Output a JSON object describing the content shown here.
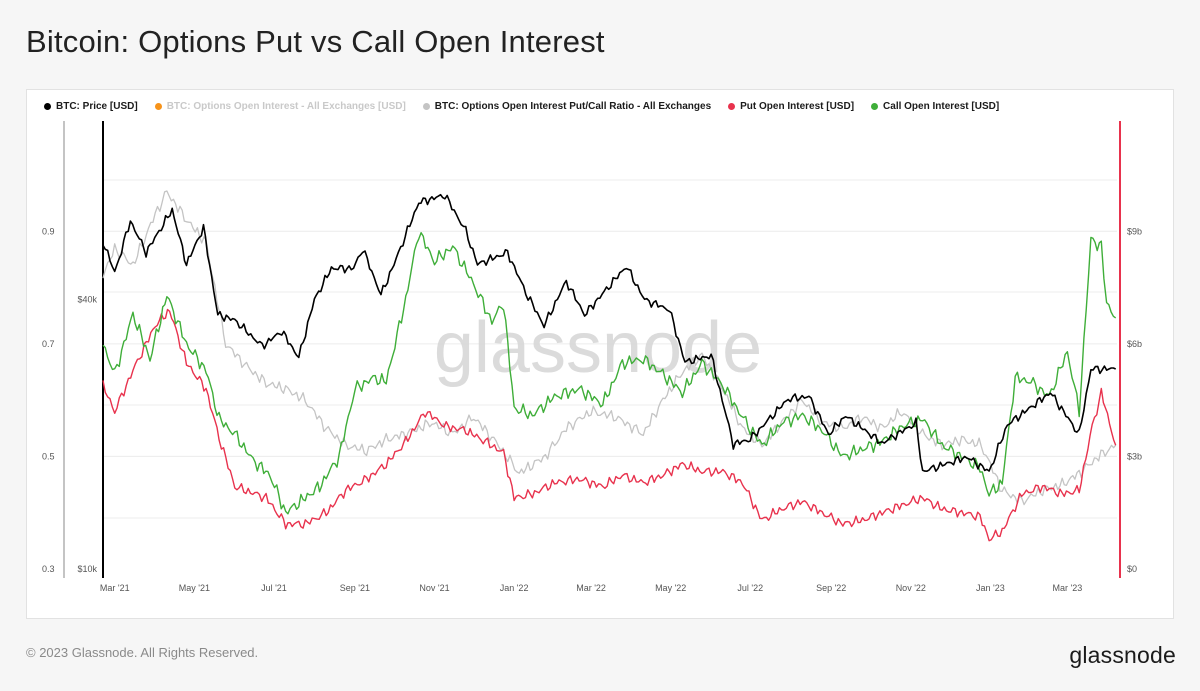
{
  "title": "Bitcoin: Options Put vs Call Open Interest",
  "watermark": "glassnode",
  "footer": {
    "copyright": "© 2023 Glassnode. All Rights Reserved.",
    "brand": "glassnode"
  },
  "colors": {
    "price": "#000000",
    "total_oi": "#f7931a",
    "ratio": "#c4c4c4",
    "put": "#e8324d",
    "call": "#3fae39",
    "grid": "#ececec"
  },
  "legend": [
    {
      "label": "BTC: Price [USD]",
      "color": "#000000",
      "dimmed": false
    },
    {
      "label": "BTC: Options Open Interest - All Exchanges [USD]",
      "color": "#f7931a",
      "dimmed": true
    },
    {
      "label": "BTC: Options Open Interest Put/Call Ratio - All Exchanges",
      "color": "#c4c4c4",
      "dimmed": false
    },
    {
      "label": "Put Open Interest [USD]",
      "color": "#e8324d",
      "dimmed": false
    },
    {
      "label": "Call Open Interest [USD]",
      "color": "#3fae39",
      "dimmed": false
    }
  ],
  "chart_data": {
    "type": "line",
    "title": "Bitcoin: Options Put vs Call Open Interest",
    "x_ticks": [
      "Mar '21",
      "May '21",
      "Jul '21",
      "Sep '21",
      "Nov '21",
      "Jan '22",
      "Mar '22",
      "May '22",
      "Jul '22",
      "Sep '22",
      "Nov '22",
      "Jan '23",
      "Mar '23"
    ],
    "x_range": [
      "2021-02-20",
      "2023-04-08"
    ],
    "axes": {
      "ratio": {
        "side": "left-outer",
        "ticks": [
          "0.9",
          "0.7",
          "0.5",
          "0.3"
        ],
        "tick_values": [
          0.9,
          0.7,
          0.5,
          0.3
        ],
        "range": [
          0.3,
          1.0
        ]
      },
      "price": {
        "side": "left-inner",
        "scale": "log",
        "ticks": [
          "$40k",
          "$10k"
        ],
        "tick_values": [
          40000,
          10000
        ],
        "range": [
          10000,
          80000
        ]
      },
      "usd": {
        "side": "right",
        "ticks": [
          "$9b",
          "$6b",
          "$3b",
          "$0"
        ],
        "tick_values": [
          9,
          6,
          3,
          0
        ],
        "unit": "billion USD",
        "range": [
          0,
          11.5
        ]
      }
    },
    "grid": true,
    "legend_position": "top",
    "series": [
      {
        "name": "BTC: Price [USD]",
        "axis": "price",
        "color": "#000000",
        "points": [
          [
            "2021-02-20",
            54000
          ],
          [
            "2021-03-01",
            46000
          ],
          [
            "2021-03-13",
            60000
          ],
          [
            "2021-03-25",
            51000
          ],
          [
            "2021-04-14",
            63500
          ],
          [
            "2021-04-25",
            48000
          ],
          [
            "2021-05-08",
            58000
          ],
          [
            "2021-05-19",
            37000
          ],
          [
            "2021-06-01",
            36000
          ],
          [
            "2021-06-22",
            31500
          ],
          [
            "2021-07-07",
            34000
          ],
          [
            "2021-07-20",
            29700
          ],
          [
            "2021-08-01",
            40000
          ],
          [
            "2021-08-14",
            47000
          ],
          [
            "2021-08-31",
            47000
          ],
          [
            "2021-09-07",
            52000
          ],
          [
            "2021-09-21",
            41000
          ],
          [
            "2021-10-01",
            48000
          ],
          [
            "2021-10-20",
            66000
          ],
          [
            "2021-11-09",
            68500
          ],
          [
            "2021-11-25",
            57000
          ],
          [
            "2021-12-04",
            48000
          ],
          [
            "2021-12-27",
            51000
          ],
          [
            "2022-01-10",
            41500
          ],
          [
            "2022-01-24",
            35000
          ],
          [
            "2022-02-10",
            44000
          ],
          [
            "2022-02-24",
            37000
          ],
          [
            "2022-03-28",
            47500
          ],
          [
            "2022-04-11",
            40000
          ],
          [
            "2022-04-30",
            38000
          ],
          [
            "2022-05-12",
            29000
          ],
          [
            "2022-06-01",
            30000
          ],
          [
            "2022-06-18",
            19000
          ],
          [
            "2022-07-01",
            19500
          ],
          [
            "2022-07-30",
            24000
          ],
          [
            "2022-08-15",
            24300
          ],
          [
            "2022-08-30",
            20000
          ],
          [
            "2022-09-12",
            22000
          ],
          [
            "2022-10-10",
            19100
          ],
          [
            "2022-11-05",
            21200
          ],
          [
            "2022-11-10",
            16500
          ],
          [
            "2022-12-14",
            17800
          ],
          [
            "2022-12-31",
            16500
          ],
          [
            "2023-01-14",
            21000
          ],
          [
            "2023-02-16",
            24800
          ],
          [
            "2023-03-10",
            20000
          ],
          [
            "2023-03-19",
            28000
          ],
          [
            "2023-04-07",
            28000
          ]
        ]
      },
      {
        "name": "BTC: Options Open Interest Put/Call Ratio - All Exchanges",
        "axis": "ratio",
        "color": "#c4c4c4",
        "points": [
          [
            "2021-02-20",
            0.82
          ],
          [
            "2021-03-01",
            0.87
          ],
          [
            "2021-03-15",
            0.84
          ],
          [
            "2021-04-01",
            0.93
          ],
          [
            "2021-04-10",
            0.97
          ],
          [
            "2021-04-25",
            0.92
          ],
          [
            "2021-05-10",
            0.88
          ],
          [
            "2021-05-25",
            0.7
          ],
          [
            "2021-06-10",
            0.66
          ],
          [
            "2021-06-25",
            0.63
          ],
          [
            "2021-07-10",
            0.62
          ],
          [
            "2021-07-25",
            0.6
          ],
          [
            "2021-08-10",
            0.55
          ],
          [
            "2021-08-25",
            0.52
          ],
          [
            "2021-09-10",
            0.51
          ],
          [
            "2021-09-25",
            0.53
          ],
          [
            "2021-10-10",
            0.54
          ],
          [
            "2021-10-30",
            0.56
          ],
          [
            "2021-11-15",
            0.54
          ],
          [
            "2021-12-01",
            0.57
          ],
          [
            "2021-12-20",
            0.52
          ],
          [
            "2022-01-05",
            0.47
          ],
          [
            "2022-01-25",
            0.5
          ],
          [
            "2022-02-10",
            0.55
          ],
          [
            "2022-03-01",
            0.58
          ],
          [
            "2022-03-20",
            0.57
          ],
          [
            "2022-04-10",
            0.54
          ],
          [
            "2022-04-25",
            0.6
          ],
          [
            "2022-05-10",
            0.65
          ],
          [
            "2022-05-25",
            0.68
          ],
          [
            "2022-06-10",
            0.62
          ],
          [
            "2022-06-25",
            0.55
          ],
          [
            "2022-07-10",
            0.52
          ],
          [
            "2022-07-25",
            0.56
          ],
          [
            "2022-08-10",
            0.6
          ],
          [
            "2022-08-25",
            0.56
          ],
          [
            "2022-09-10",
            0.55
          ],
          [
            "2022-09-25",
            0.57
          ],
          [
            "2022-10-10",
            0.55
          ],
          [
            "2022-10-25",
            0.58
          ],
          [
            "2022-11-10",
            0.54
          ],
          [
            "2022-11-25",
            0.52
          ],
          [
            "2022-12-10",
            0.53
          ],
          [
            "2022-12-25",
            0.52
          ],
          [
            "2023-01-10",
            0.44
          ],
          [
            "2023-01-25",
            0.42
          ],
          [
            "2023-02-10",
            0.44
          ],
          [
            "2023-02-25",
            0.45
          ],
          [
            "2023-03-10",
            0.47
          ],
          [
            "2023-03-25",
            0.5
          ],
          [
            "2023-04-07",
            0.52
          ]
        ]
      },
      {
        "name": "Put Open Interest [USD]",
        "axis": "usd",
        "color": "#e8324d",
        "points": [
          [
            "2021-02-20",
            4.9
          ],
          [
            "2021-03-01",
            4.2
          ],
          [
            "2021-03-15",
            5.3
          ],
          [
            "2021-04-01",
            6.5
          ],
          [
            "2021-04-12",
            6.9
          ],
          [
            "2021-04-25",
            5.5
          ],
          [
            "2021-05-10",
            4.8
          ],
          [
            "2021-05-20",
            3.5
          ],
          [
            "2021-06-01",
            2.2
          ],
          [
            "2021-06-25",
            1.9
          ],
          [
            "2021-07-10",
            1.2
          ],
          [
            "2021-07-25",
            1.2
          ],
          [
            "2021-08-10",
            1.5
          ],
          [
            "2021-08-25",
            2.1
          ],
          [
            "2021-09-10",
            2.4
          ],
          [
            "2021-09-25",
            2.8
          ],
          [
            "2021-10-10",
            3.4
          ],
          [
            "2021-10-25",
            4.2
          ],
          [
            "2021-11-10",
            3.8
          ],
          [
            "2021-11-25",
            3.7
          ],
          [
            "2021-12-10",
            3.4
          ],
          [
            "2021-12-24",
            3.1
          ],
          [
            "2022-01-01",
            1.9
          ],
          [
            "2022-01-15",
            2.0
          ],
          [
            "2022-02-01",
            2.3
          ],
          [
            "2022-02-20",
            2.4
          ],
          [
            "2022-03-10",
            2.2
          ],
          [
            "2022-03-25",
            2.5
          ],
          [
            "2022-04-10",
            2.3
          ],
          [
            "2022-04-25",
            2.5
          ],
          [
            "2022-05-10",
            2.8
          ],
          [
            "2022-05-25",
            2.6
          ],
          [
            "2022-06-10",
            2.6
          ],
          [
            "2022-06-25",
            2.3
          ],
          [
            "2022-07-10",
            1.3
          ],
          [
            "2022-07-25",
            1.6
          ],
          [
            "2022-08-10",
            1.8
          ],
          [
            "2022-08-25",
            1.5
          ],
          [
            "2022-09-10",
            1.2
          ],
          [
            "2022-09-25",
            1.3
          ],
          [
            "2022-10-10",
            1.5
          ],
          [
            "2022-10-25",
            1.7
          ],
          [
            "2022-11-10",
            1.9
          ],
          [
            "2022-11-25",
            1.6
          ],
          [
            "2022-12-10",
            1.5
          ],
          [
            "2022-12-24",
            1.4
          ],
          [
            "2022-12-31",
            0.8
          ],
          [
            "2023-01-10",
            1.0
          ],
          [
            "2023-01-25",
            2.0
          ],
          [
            "2023-02-10",
            2.2
          ],
          [
            "2023-02-25",
            2.0
          ],
          [
            "2023-03-10",
            2.1
          ],
          [
            "2023-03-20",
            3.8
          ],
          [
            "2023-03-27",
            4.7
          ],
          [
            "2023-04-07",
            3.3
          ]
        ]
      },
      {
        "name": "Call Open Interest [USD]",
        "axis": "usd",
        "color": "#3fae39",
        "points": [
          [
            "2021-02-20",
            6.0
          ],
          [
            "2021-03-01",
            5.2
          ],
          [
            "2021-03-15",
            6.8
          ],
          [
            "2021-03-28",
            5.6
          ],
          [
            "2021-04-10",
            7.3
          ],
          [
            "2021-04-25",
            6.0
          ],
          [
            "2021-05-10",
            5.3
          ],
          [
            "2021-05-20",
            4.0
          ],
          [
            "2021-06-01",
            3.6
          ],
          [
            "2021-06-15",
            2.9
          ],
          [
            "2021-06-28",
            2.5
          ],
          [
            "2021-07-10",
            1.5
          ],
          [
            "2021-07-25",
            1.9
          ],
          [
            "2021-08-05",
            2.2
          ],
          [
            "2021-08-20",
            3.0
          ],
          [
            "2021-09-01",
            4.8
          ],
          [
            "2021-09-15",
            5.1
          ],
          [
            "2021-09-25",
            5.0
          ],
          [
            "2021-10-10",
            7.2
          ],
          [
            "2021-10-20",
            9.0
          ],
          [
            "2021-11-01",
            8.2
          ],
          [
            "2021-11-15",
            8.6
          ],
          [
            "2021-12-01",
            7.6
          ],
          [
            "2021-12-15",
            6.6
          ],
          [
            "2021-12-24",
            7.1
          ],
          [
            "2022-01-01",
            4.3
          ],
          [
            "2022-01-15",
            4.1
          ],
          [
            "2022-02-01",
            4.6
          ],
          [
            "2022-02-20",
            4.8
          ],
          [
            "2022-03-10",
            4.4
          ],
          [
            "2022-03-25",
            5.5
          ],
          [
            "2022-04-10",
            5.6
          ],
          [
            "2022-04-25",
            5.2
          ],
          [
            "2022-05-10",
            4.7
          ],
          [
            "2022-05-25",
            5.5
          ],
          [
            "2022-06-10",
            4.9
          ],
          [
            "2022-06-24",
            4.1
          ],
          [
            "2022-07-10",
            3.3
          ],
          [
            "2022-07-25",
            3.9
          ],
          [
            "2022-08-10",
            4.1
          ],
          [
            "2022-08-25",
            3.7
          ],
          [
            "2022-09-10",
            3.0
          ],
          [
            "2022-09-25",
            3.2
          ],
          [
            "2022-10-10",
            3.4
          ],
          [
            "2022-10-25",
            3.8
          ],
          [
            "2022-11-10",
            4.0
          ],
          [
            "2022-11-25",
            3.3
          ],
          [
            "2022-12-10",
            3.0
          ],
          [
            "2022-12-24",
            2.7
          ],
          [
            "2022-12-31",
            2.0
          ],
          [
            "2023-01-10",
            2.3
          ],
          [
            "2023-01-20",
            5.1
          ],
          [
            "2023-02-01",
            5.0
          ],
          [
            "2023-02-15",
            4.6
          ],
          [
            "2023-03-01",
            5.8
          ],
          [
            "2023-03-10",
            4.2
          ],
          [
            "2023-03-19",
            8.8
          ],
          [
            "2023-03-27",
            8.6
          ],
          [
            "2023-03-31",
            7.1
          ],
          [
            "2023-04-07",
            6.7
          ]
        ]
      }
    ]
  }
}
